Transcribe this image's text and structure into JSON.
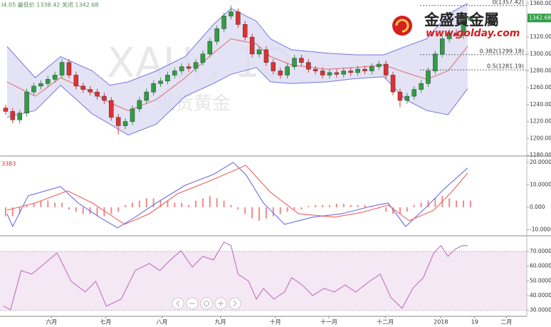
{
  "header": "I4.05 最低价 1338.42 关闭 1342.68",
  "logo": {
    "name": "金盛貴金屬",
    "url": "www.golday.com"
  },
  "chart_data": [
    {
      "type": "candlestick",
      "watermark": "XAU/, 1D",
      "watermark_sub": "现货黄金",
      "up_color": "#2f9e44",
      "down_color": "#e03030",
      "xlim": [
        -0.8,
        74
      ],
      "ylim": [
        1180,
        1364
      ],
      "yticks": [
        {
          "value": 1180,
          "label": "1180.00"
        },
        {
          "value": 1200,
          "label": "1200.00"
        },
        {
          "value": 1220,
          "label": "1220.00"
        },
        {
          "value": 1240,
          "label": "1240.00"
        },
        {
          "value": 1260,
          "label": "1260.00"
        },
        {
          "value": 1280,
          "label": "1280.00"
        },
        {
          "value": 1300,
          "label": "1300.00"
        },
        {
          "value": 1320,
          "label": "1320.00"
        },
        {
          "value": 1340,
          "label": "1340.00"
        },
        {
          "value": 1360,
          "label": "1360.00"
        }
      ],
      "ohlc": [
        [
          1236,
          1240,
          1228,
          1232
        ],
        [
          1232,
          1236,
          1218,
          1222
        ],
        [
          1222,
          1234,
          1218,
          1230
        ],
        [
          1230,
          1259,
          1226,
          1255
        ],
        [
          1255,
          1266,
          1251,
          1262
        ],
        [
          1262,
          1269,
          1258,
          1265
        ],
        [
          1265,
          1274,
          1261,
          1270
        ],
        [
          1270,
          1279,
          1266,
          1275
        ],
        [
          1275,
          1294,
          1271,
          1290
        ],
        [
          1290,
          1294,
          1271,
          1275
        ],
        [
          1275,
          1279,
          1258,
          1262
        ],
        [
          1262,
          1266,
          1254,
          1258
        ],
        [
          1258,
          1262,
          1251,
          1255
        ],
        [
          1255,
          1259,
          1246,
          1250
        ],
        [
          1250,
          1254,
          1241,
          1245
        ],
        [
          1245,
          1249,
          1221,
          1225
        ],
        [
          1225,
          1229,
          1205,
          1215
        ],
        [
          1215,
          1224,
          1211,
          1220
        ],
        [
          1220,
          1239,
          1216,
          1235
        ],
        [
          1235,
          1249,
          1231,
          1245
        ],
        [
          1245,
          1259,
          1241,
          1255
        ],
        [
          1255,
          1269,
          1251,
          1265
        ],
        [
          1265,
          1272,
          1261,
          1268
        ],
        [
          1268,
          1279,
          1264,
          1275
        ],
        [
          1275,
          1284,
          1271,
          1280
        ],
        [
          1280,
          1289,
          1276,
          1285
        ],
        [
          1285,
          1289,
          1279,
          1283
        ],
        [
          1283,
          1294,
          1279,
          1290
        ],
        [
          1290,
          1304,
          1286,
          1300
        ],
        [
          1300,
          1319,
          1296,
          1315
        ],
        [
          1315,
          1334,
          1311,
          1330
        ],
        [
          1330,
          1349,
          1326,
          1345
        ],
        [
          1345,
          1357.42,
          1341,
          1350
        ],
        [
          1350,
          1354,
          1331,
          1335
        ],
        [
          1335,
          1339,
          1316,
          1320
        ],
        [
          1320,
          1324,
          1296,
          1300
        ],
        [
          1300,
          1309,
          1296,
          1305
        ],
        [
          1305,
          1309,
          1286,
          1290
        ],
        [
          1290,
          1294,
          1276,
          1280
        ],
        [
          1280,
          1284,
          1271,
          1275
        ],
        [
          1275,
          1289,
          1271,
          1285
        ],
        [
          1285,
          1299,
          1281,
          1295
        ],
        [
          1295,
          1299,
          1286,
          1290
        ],
        [
          1290,
          1294,
          1278,
          1282
        ],
        [
          1282,
          1286,
          1276,
          1280
        ],
        [
          1280,
          1284,
          1271,
          1275
        ],
        [
          1275,
          1282,
          1271,
          1278
        ],
        [
          1278,
          1282,
          1272,
          1276
        ],
        [
          1276,
          1284,
          1272,
          1280
        ],
        [
          1280,
          1284,
          1274,
          1278
        ],
        [
          1278,
          1286,
          1274,
          1282
        ],
        [
          1282,
          1286,
          1276,
          1280
        ],
        [
          1280,
          1289,
          1276,
          1285
        ],
        [
          1285,
          1292,
          1281,
          1288
        ],
        [
          1288,
          1292,
          1271,
          1275
        ],
        [
          1275,
          1279,
          1251,
          1255
        ],
        [
          1255,
          1259,
          1237,
          1245
        ],
        [
          1245,
          1254,
          1241,
          1250
        ],
        [
          1250,
          1262,
          1246,
          1258
        ],
        [
          1258,
          1269,
          1254,
          1265
        ],
        [
          1265,
          1284,
          1261,
          1280
        ],
        [
          1280,
          1304,
          1276,
          1300
        ],
        [
          1300,
          1322,
          1296,
          1318
        ],
        [
          1318,
          1329,
          1314,
          1325
        ],
        [
          1325,
          1329,
          1318,
          1322
        ],
        [
          1322,
          1344,
          1318,
          1340
        ],
        [
          1340,
          1344.05,
          1338.42,
          1342.68
        ]
      ],
      "bands": {
        "x": [
          0.2,
          4.2,
          7.8,
          12.3,
          14.8,
          17.4,
          21.4,
          25.5,
          29.5,
          32,
          35.6,
          37.6,
          40.6,
          45.7,
          49.7,
          53.7,
          56.8,
          59.8,
          62.8,
          65.6
        ],
        "fill": "#dcdcf3",
        "upper": {
          "color": "#7474e0",
          "values": [
            1309,
            1272,
            1297,
            1280,
            1263,
            1267,
            1280,
            1297,
            1335,
            1354,
            1339,
            1318,
            1305,
            1301,
            1299,
            1299,
            1309,
            1318,
            1347,
            1360
          ]
        },
        "middle": {
          "color": "#e06a6a",
          "values": [
            1267,
            1250,
            1272,
            1255,
            1242,
            1233,
            1246,
            1272,
            1301,
            1318,
            1312,
            1297,
            1287,
            1282,
            1284,
            1287,
            1278,
            1270,
            1280,
            1309
          ]
        },
        "lower": {
          "color": "#7474e0",
          "values": [
            1225,
            1233,
            1263,
            1229,
            1217,
            1204,
            1217,
            1250,
            1265,
            1276,
            1284,
            1267,
            1265,
            1267,
            1271,
            1273,
            1246,
            1233,
            1228,
            1259
          ]
        }
      },
      "annotations": [
        {
          "label": "0(1357.42)",
          "value": 1357.42
        },
        {
          "label": "0.382(1299.18)",
          "value": 1299.18
        },
        {
          "label": "0.5(1281.19)",
          "value": 1281.19
        }
      ]
    },
    {
      "type": "macd",
      "label": "3383",
      "xlim": [
        -0.8,
        74
      ],
      "ylim": [
        -12.4,
        22.5
      ],
      "yticks": [
        {
          "value": 20,
          "label": "20.0000"
        },
        {
          "value": 10,
          "label": "10.0000"
        },
        {
          "value": 0,
          "label": "0.000"
        },
        {
          "value": -10,
          "label": "-10.0000"
        }
      ],
      "series": [
        {
          "color": "#6a6ee0",
          "x": [
            0.2,
            1,
            3.2,
            7.8,
            10.3,
            13.3,
            15.9,
            18.4,
            21.4,
            25.5,
            29.5,
            32.3,
            34.1,
            36.6,
            39.6,
            43.6,
            47.7,
            51.7,
            54.3,
            56.8,
            59.8,
            62.3,
            65.6
          ],
          "values": [
            -2.9,
            -8.6,
            5.1,
            9.2,
            1.9,
            -4.4,
            -9.2,
            -4.4,
            1.9,
            9.8,
            14.6,
            20,
            14.6,
            1.9,
            -7.6,
            -4.4,
            -2.9,
            0.3,
            1.9,
            -8.6,
            0.3,
            8.3,
            17.5
          ]
        },
        {
          "color": "#f06060",
          "x": [
            0.2,
            4.2,
            8.8,
            12.3,
            16.9,
            20.4,
            24.4,
            29.5,
            34.1,
            37.6,
            41.6,
            46.7,
            50.7,
            54.3,
            57.3,
            60.8,
            63.3,
            65.6
          ],
          "values": [
            -1.3,
            1.9,
            7.3,
            1.9,
            -7.6,
            -2.9,
            6,
            12.4,
            18.7,
            6.7,
            -2.9,
            -4.4,
            -2.2,
            1,
            -6,
            -1.3,
            6.7,
            15.2
          ]
        }
      ],
      "histogram": {
        "color": "#f08a8a",
        "values": [
          -4,
          -4,
          -3,
          1,
          2,
          3,
          3,
          2,
          2,
          -1,
          -2,
          -3,
          -3,
          -4,
          -4,
          -3,
          -2,
          1,
          2,
          3,
          4,
          4,
          3,
          3,
          2,
          2,
          1,
          3,
          4,
          5,
          4,
          3,
          1,
          -1,
          -3,
          -5,
          -6,
          -5,
          -4,
          -3,
          -2,
          -1,
          -1,
          0.5,
          1,
          1,
          1,
          1.5,
          1.5,
          1,
          1,
          1,
          0.5,
          -0.5,
          -2,
          -3,
          -3,
          -2,
          1,
          2,
          3,
          4,
          5,
          4,
          3,
          3,
          3
        ]
      }
    },
    {
      "type": "line",
      "xlim": [
        -0.8,
        74
      ],
      "ylim": [
        26,
        79.6
      ],
      "levels": [
        30,
        70
      ],
      "fill": "#f4e8f4",
      "yticks": [
        {
          "value": 30,
          "label": "30.0000"
        },
        {
          "value": 40,
          "label": "40.0000"
        },
        {
          "value": 50,
          "label": "50.0000"
        },
        {
          "value": 60,
          "label": "60.0000"
        },
        {
          "value": 70,
          "label": "70.0000"
        }
      ],
      "xticks": [
        {
          "value": 6.5,
          "label": "六月"
        },
        {
          "value": 14.2,
          "label": "七月"
        },
        {
          "value": 22.2,
          "label": "八月"
        },
        {
          "value": 30.5,
          "label": "九月"
        },
        {
          "value": 38.3,
          "label": "十月"
        },
        {
          "value": 45.9,
          "label": "十一月"
        },
        {
          "value": 53.9,
          "label": "十二月"
        },
        {
          "value": 61.8,
          "label": "2018"
        },
        {
          "value": 66.6,
          "label": "19"
        },
        {
          "value": 71.1,
          "label": "二月"
        }
      ],
      "series": [
        {
          "color": "#c070c0",
          "x": [
            -0.3,
            0.7,
            2.2,
            3.7,
            5.3,
            7.3,
            9.3,
            11.3,
            12.8,
            14.3,
            16.4,
            18.4,
            20.4,
            21.9,
            23.4,
            24.9,
            26.5,
            28,
            29.5,
            31,
            32,
            33,
            34.5,
            35.6,
            36.6,
            38.1,
            39.6,
            40.6,
            42.1,
            43.6,
            45.2,
            46.7,
            48.2,
            49.7,
            51.7,
            53.2,
            54.7,
            56.3,
            57.8,
            59.3,
            60.8,
            61.8,
            62.8,
            63.8,
            64.8,
            65.6
          ],
          "values": [
            33,
            30.5,
            57,
            54.6,
            60.8,
            69,
            49.8,
            42.5,
            49.8,
            32.9,
            37.7,
            57,
            61.8,
            57,
            64.2,
            70.5,
            59.4,
            66.6,
            64.2,
            76.3,
            73.9,
            54.6,
            49.8,
            37.7,
            44.9,
            37.7,
            42.5,
            52.2,
            47.3,
            40.1,
            44.9,
            42.5,
            47.3,
            42.5,
            49.8,
            54.6,
            38.7,
            31.4,
            44.9,
            52.2,
            69,
            73.9,
            66.6,
            71.4,
            73.9,
            73.9
          ]
        }
      ]
    }
  ]
}
